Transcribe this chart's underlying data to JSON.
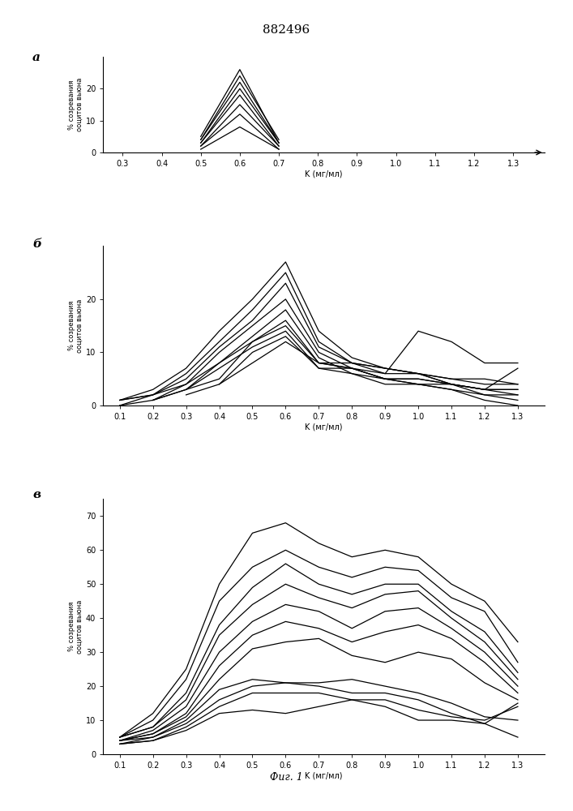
{
  "title": "882496",
  "fig_label": "Фиг. 1",
  "xlabel": "K (мг/мл)",
  "ylabel_a": "% созревания ооцитов вьюна",
  "ylabel_b": "% созревания ооцитов вьюна",
  "ylabel_v": "% созревания ооцитов вьюна",
  "panel_a_label": "а",
  "panel_b_label": "б",
  "panel_v_label": "в",
  "x_ticks_a": [
    0.3,
    0.4,
    0.5,
    0.6,
    0.7,
    0.8,
    0.9,
    1.0,
    1.1,
    1.2,
    1.3
  ],
  "x_ticks_b": [
    0.1,
    0.2,
    0.3,
    0.4,
    0.5,
    0.6,
    0.7,
    0.8,
    0.9,
    1.0,
    1.1,
    1.2,
    1.3
  ],
  "x_ticks_v": [
    0.1,
    0.2,
    0.3,
    0.4,
    0.5,
    0.6,
    0.7,
    0.8,
    0.9,
    1.0,
    1.1,
    1.2,
    1.3
  ],
  "panel_a_ylim": [
    0,
    30
  ],
  "panel_b_ylim": [
    0,
    30
  ],
  "panel_v_ylim": [
    0,
    75
  ],
  "panel_a_yticks": [
    0,
    10,
    20
  ],
  "panel_b_yticks": [
    0,
    10,
    20
  ],
  "panel_v_yticks": [
    0,
    10,
    20,
    30,
    40,
    50,
    60,
    70
  ],
  "panel_a_curves": [
    [
      0.5,
      0.6,
      0.7
    ],
    [
      0.5,
      0.6,
      0.7
    ],
    [
      0.5,
      0.6,
      0.7
    ],
    [
      0.5,
      0.6,
      0.7
    ],
    [
      0.5,
      0.6,
      0.7
    ],
    [
      0.5,
      0.6,
      0.7
    ],
    [
      0.5,
      0.6,
      0.7
    ],
    [
      0.5,
      0.6,
      0.7
    ]
  ],
  "panel_a_values": [
    [
      5,
      26,
      3
    ],
    [
      4,
      24,
      4
    ],
    [
      4,
      22,
      3
    ],
    [
      3,
      20,
      3
    ],
    [
      3,
      18,
      2
    ],
    [
      2,
      15,
      2
    ],
    [
      2,
      12,
      1
    ],
    [
      1,
      8,
      1
    ]
  ],
  "panel_b_curves_x": [
    [
      0.1,
      0.2,
      0.3,
      0.4,
      0.5,
      0.6,
      0.7,
      0.8,
      0.9,
      1.0,
      1.1,
      1.2,
      1.3
    ],
    [
      0.1,
      0.2,
      0.3,
      0.4,
      0.5,
      0.6,
      0.7,
      0.8,
      0.9,
      1.0,
      1.1,
      1.2,
      1.3
    ],
    [
      0.1,
      0.2,
      0.3,
      0.4,
      0.5,
      0.6,
      0.7,
      0.8,
      0.9,
      1.0,
      1.1,
      1.2,
      1.3
    ],
    [
      0.1,
      0.2,
      0.3,
      0.4,
      0.5,
      0.6,
      0.7,
      0.8,
      0.9,
      1.0,
      1.1,
      1.2,
      1.3
    ],
    [
      0.1,
      0.2,
      0.3,
      0.4,
      0.5,
      0.6,
      0.7,
      0.8,
      0.9,
      1.0,
      1.1,
      1.2,
      1.3
    ],
    [
      0.2,
      0.3,
      0.4,
      0.5,
      0.6,
      0.7,
      0.8,
      0.9,
      1.0,
      1.1,
      1.2,
      1.3
    ],
    [
      0.2,
      0.3,
      0.4,
      0.5,
      0.6,
      0.7,
      0.8,
      0.9,
      1.0,
      1.1,
      1.2,
      1.3
    ],
    [
      0.3,
      0.4,
      0.5,
      0.6,
      0.7,
      0.8,
      0.9,
      1.0,
      1.1,
      1.2,
      1.3
    ],
    [
      0.3,
      0.4,
      0.5,
      0.6,
      0.7,
      0.8,
      0.9,
      1.0,
      1.1,
      1.2,
      1.3
    ],
    [
      0.4,
      0.5,
      0.6,
      0.7,
      0.8,
      0.9,
      1.0,
      1.1,
      1.2,
      1.3
    ]
  ],
  "panel_b_values": [
    [
      1,
      3,
      7,
      14,
      20,
      27,
      14,
      9,
      7,
      6,
      5,
      4,
      4
    ],
    [
      1,
      2,
      6,
      12,
      18,
      25,
      12,
      8,
      7,
      6,
      4,
      3,
      3
    ],
    [
      1,
      2,
      5,
      11,
      16,
      23,
      11,
      8,
      7,
      6,
      4,
      3,
      3
    ],
    [
      0,
      2,
      4,
      10,
      15,
      20,
      10,
      7,
      5,
      5,
      4,
      3,
      2
    ],
    [
      0,
      1,
      3,
      8,
      13,
      18,
      9,
      6,
      4,
      4,
      3,
      2,
      1
    ],
    [
      1,
      4,
      8,
      12,
      16,
      8,
      7,
      6,
      14,
      12,
      8,
      8
    ],
    [
      1,
      3,
      7,
      11,
      14,
      7,
      7,
      5,
      5,
      4,
      2,
      2
    ],
    [
      3,
      5,
      12,
      15,
      8,
      7,
      5,
      4,
      4,
      3,
      7
    ],
    [
      2,
      4,
      10,
      13,
      7,
      6,
      5,
      4,
      3,
      1,
      0
    ],
    [
      4,
      8,
      12,
      8,
      8,
      6,
      6,
      5,
      5,
      4
    ]
  ],
  "panel_v_curves_x": [
    [
      0.1,
      0.2,
      0.3,
      0.4,
      0.5,
      0.6,
      0.7,
      0.8,
      0.9,
      1.0,
      1.1,
      1.2,
      1.3
    ],
    [
      0.1,
      0.2,
      0.3,
      0.4,
      0.5,
      0.6,
      0.7,
      0.8,
      0.9,
      1.0,
      1.1,
      1.2,
      1.3
    ],
    [
      0.1,
      0.2,
      0.3,
      0.4,
      0.5,
      0.6,
      0.7,
      0.8,
      0.9,
      1.0,
      1.1,
      1.2,
      1.3
    ],
    [
      0.1,
      0.2,
      0.3,
      0.4,
      0.5,
      0.6,
      0.7,
      0.8,
      0.9,
      1.0,
      1.1,
      1.2,
      1.3
    ],
    [
      0.1,
      0.2,
      0.3,
      0.4,
      0.5,
      0.6,
      0.7,
      0.8,
      0.9,
      1.0,
      1.1,
      1.2,
      1.3
    ],
    [
      0.1,
      0.2,
      0.3,
      0.4,
      0.5,
      0.6,
      0.7,
      0.8,
      0.9,
      1.0,
      1.1,
      1.2,
      1.3
    ],
    [
      0.1,
      0.2,
      0.3,
      0.4,
      0.5,
      0.6,
      0.7,
      0.8,
      0.9,
      1.0,
      1.1,
      1.2,
      1.3
    ],
    [
      0.1,
      0.2,
      0.3,
      0.4,
      0.5,
      0.6,
      0.7,
      0.8,
      0.9,
      1.0,
      1.1,
      1.2,
      1.3
    ],
    [
      0.1,
      0.2,
      0.3,
      0.4,
      0.5,
      0.6,
      0.7,
      0.8,
      0.9,
      1.0,
      1.1,
      1.2,
      1.3
    ],
    [
      0.1,
      0.2,
      0.3,
      0.4,
      0.5,
      0.6,
      0.7,
      0.8,
      0.9,
      1.0,
      1.1,
      1.2,
      1.3
    ],
    [
      0.1,
      0.2,
      0.3,
      0.4,
      0.5,
      0.6,
      0.7,
      0.8,
      0.9,
      1.0,
      1.1,
      1.2,
      1.3
    ]
  ],
  "panel_v_values": [
    [
      5,
      12,
      25,
      50,
      65,
      68,
      62,
      58,
      60,
      58,
      50,
      45,
      33
    ],
    [
      5,
      10,
      22,
      45,
      55,
      60,
      55,
      52,
      55,
      54,
      46,
      42,
      27
    ],
    [
      5,
      8,
      18,
      38,
      49,
      56,
      50,
      47,
      50,
      50,
      42,
      36,
      24
    ],
    [
      5,
      8,
      16,
      35,
      44,
      50,
      46,
      43,
      47,
      48,
      40,
      33,
      22
    ],
    [
      4,
      7,
      14,
      30,
      39,
      44,
      42,
      37,
      42,
      43,
      37,
      30,
      20
    ],
    [
      4,
      6,
      12,
      26,
      35,
      39,
      37,
      33,
      36,
      38,
      34,
      27,
      18
    ],
    [
      4,
      6,
      11,
      22,
      31,
      33,
      34,
      29,
      27,
      30,
      28,
      21,
      16
    ],
    [
      4,
      5,
      10,
      19,
      22,
      21,
      21,
      22,
      20,
      18,
      15,
      11,
      10
    ],
    [
      3,
      5,
      9,
      16,
      20,
      21,
      20,
      18,
      18,
      16,
      12,
      9,
      5
    ],
    [
      3,
      4,
      8,
      14,
      18,
      18,
      18,
      16,
      16,
      13,
      11,
      10,
      14
    ],
    [
      3,
      4,
      7,
      12,
      13,
      12,
      14,
      16,
      14,
      10,
      10,
      9,
      15
    ]
  ],
  "line_color": "#000000",
  "bg_color": "#ffffff"
}
